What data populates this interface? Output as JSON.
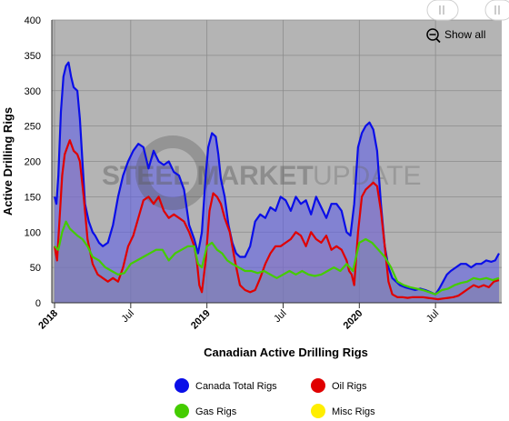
{
  "chart_data": {
    "type": "area",
    "title": "",
    "xlabel": "Canadian Active Drilling Rigs",
    "ylabel": "Active Drilling Rigs",
    "ylim": [
      0,
      400
    ],
    "yticks": [
      0,
      50,
      100,
      150,
      200,
      250,
      300,
      350,
      400
    ],
    "x_start": "2018-01",
    "x_end": "2020-12",
    "xticks": [
      {
        "label": "2018",
        "month": 0,
        "bold": true
      },
      {
        "label": "Jul",
        "month": 6,
        "bold": false
      },
      {
        "label": "2019",
        "month": 12,
        "bold": true
      },
      {
        "label": "Jul",
        "month": 18,
        "bold": false
      },
      {
        "label": "2020",
        "month": 24,
        "bold": true
      },
      {
        "label": "Jul",
        "month": 30,
        "bold": false
      }
    ],
    "grid": true,
    "legend_position": "bottom",
    "watermark": "STEEL MARKET UPDATE",
    "zoom_button_label": "Show all",
    "series": [
      {
        "name": "Canada Total Rigs",
        "color": "#0a0ee8",
        "x": [
          0,
          0.15,
          0.3,
          0.5,
          0.7,
          0.9,
          1.1,
          1.3,
          1.5,
          1.8,
          2.0,
          2.2,
          2.4,
          2.7,
          3.0,
          3.2,
          3.5,
          3.8,
          4.2,
          4.6,
          5.0,
          5.4,
          5.8,
          6.2,
          6.6,
          7.0,
          7.4,
          7.8,
          8.2,
          8.6,
          9.0,
          9.4,
          9.8,
          10.2,
          10.6,
          11.0,
          11.3,
          11.6,
          11.9,
          12.1,
          12.4,
          12.7,
          12.9,
          13.1,
          13.4,
          13.7,
          14.0,
          14.3,
          14.6,
          15.0,
          15.4,
          15.8,
          16.2,
          16.6,
          17.0,
          17.4,
          17.8,
          18.2,
          18.6,
          19.0,
          19.4,
          19.8,
          20.2,
          20.6,
          21.0,
          21.4,
          21.8,
          22.2,
          22.6,
          23.0,
          23.3,
          23.6,
          23.9,
          24.2,
          24.5,
          24.8,
          25.1,
          25.4,
          25.7,
          26.0,
          26.3,
          26.6,
          26.9,
          27.2,
          27.6,
          28.0,
          28.4,
          28.8,
          29.2,
          29.6,
          30.0,
          30.3,
          30.6,
          30.9,
          31.2,
          31.6,
          32.0,
          32.4,
          32.8,
          33.2,
          33.6,
          34.0,
          34.4,
          34.7,
          35.0
        ],
        "y": [
          150,
          140,
          180,
          270,
          320,
          335,
          340,
          320,
          305,
          300,
          260,
          200,
          140,
          115,
          100,
          95,
          85,
          80,
          85,
          110,
          150,
          180,
          200,
          215,
          225,
          220,
          190,
          215,
          200,
          195,
          200,
          185,
          180,
          160,
          110,
          90,
          70,
          100,
          180,
          220,
          240,
          235,
          210,
          175,
          150,
          110,
          85,
          70,
          65,
          65,
          80,
          115,
          125,
          120,
          135,
          130,
          150,
          145,
          130,
          150,
          140,
          145,
          125,
          150,
          135,
          120,
          140,
          140,
          130,
          100,
          95,
          140,
          220,
          240,
          250,
          255,
          245,
          215,
          140,
          80,
          50,
          35,
          30,
          25,
          22,
          20,
          18,
          20,
          18,
          15,
          12,
          20,
          30,
          40,
          45,
          50,
          55,
          55,
          50,
          55,
          55,
          60,
          58,
          60,
          70
        ]
      },
      {
        "name": "Oil Rigs",
        "color": "#e00000",
        "x": [
          0,
          0.2,
          0.4,
          0.6,
          0.8,
          1.0,
          1.2,
          1.5,
          1.8,
          2.0,
          2.3,
          2.6,
          3.0,
          3.4,
          3.8,
          4.2,
          4.6,
          5.0,
          5.4,
          5.8,
          6.2,
          6.6,
          7.0,
          7.4,
          7.8,
          8.2,
          8.6,
          9.0,
          9.4,
          9.8,
          10.2,
          10.6,
          11.0,
          11.2,
          11.4,
          11.6,
          11.9,
          12.2,
          12.5,
          12.8,
          13.1,
          13.4,
          13.8,
          14.2,
          14.6,
          15.0,
          15.4,
          15.8,
          16.2,
          16.6,
          17.0,
          17.4,
          17.8,
          18.2,
          18.6,
          19.0,
          19.4,
          19.8,
          20.2,
          20.6,
          21.0,
          21.4,
          21.8,
          22.2,
          22.6,
          23.0,
          23.2,
          23.4,
          23.6,
          23.9,
          24.2,
          24.5,
          24.8,
          25.1,
          25.4,
          25.7,
          26.0,
          26.3,
          26.6,
          27.0,
          27.4,
          27.8,
          28.2,
          28.6,
          29.0,
          29.4,
          29.8,
          30.2,
          30.6,
          31.0,
          31.4,
          31.8,
          32.2,
          32.6,
          33.0,
          33.4,
          33.8,
          34.2,
          34.6,
          35.0
        ],
        "y": [
          80,
          60,
          120,
          180,
          210,
          220,
          230,
          215,
          210,
          200,
          150,
          90,
          55,
          40,
          35,
          30,
          35,
          30,
          50,
          80,
          95,
          120,
          145,
          150,
          140,
          150,
          130,
          120,
          125,
          120,
          115,
          100,
          80,
          60,
          25,
          15,
          60,
          130,
          155,
          150,
          140,
          120,
          100,
          60,
          25,
          18,
          15,
          18,
          35,
          55,
          70,
          80,
          80,
          85,
          90,
          100,
          95,
          80,
          100,
          90,
          85,
          95,
          75,
          80,
          75,
          60,
          45,
          40,
          25,
          100,
          150,
          160,
          165,
          170,
          165,
          130,
          80,
          30,
          12,
          8,
          8,
          7,
          8,
          8,
          8,
          7,
          6,
          5,
          6,
          7,
          8,
          10,
          15,
          20,
          25,
          22,
          25,
          22,
          30,
          32
        ]
      },
      {
        "name": "Gas Rigs",
        "color": "#44cc00",
        "x": [
          0,
          0.3,
          0.6,
          0.9,
          1.2,
          1.5,
          1.8,
          2.2,
          2.6,
          3.0,
          3.5,
          4.0,
          4.5,
          5.0,
          5.5,
          6.0,
          6.5,
          7.0,
          7.5,
          8.0,
          8.5,
          9.0,
          9.5,
          10.0,
          10.5,
          11.0,
          11.3,
          11.6,
          12.0,
          12.4,
          12.8,
          13.2,
          13.6,
          14.0,
          14.5,
          15.0,
          15.5,
          16.0,
          16.5,
          17.0,
          17.5,
          18.0,
          18.5,
          19.0,
          19.5,
          20.0,
          20.5,
          21.0,
          21.5,
          22.0,
          22.5,
          23.0,
          23.5,
          24.0,
          24.5,
          25.0,
          25.5,
          26.0,
          26.5,
          27.0,
          27.5,
          28.0,
          28.5,
          29.0,
          29.5,
          30.0,
          30.5,
          31.0,
          31.5,
          32.0,
          32.5,
          33.0,
          33.5,
          34.0,
          34.5,
          35.0
        ],
        "y": [
          80,
          75,
          100,
          115,
          105,
          100,
          95,
          90,
          80,
          65,
          60,
          50,
          45,
          40,
          42,
          55,
          60,
          65,
          70,
          75,
          75,
          60,
          70,
          75,
          80,
          80,
          55,
          50,
          80,
          85,
          75,
          70,
          60,
          55,
          50,
          45,
          45,
          42,
          45,
          40,
          35,
          40,
          45,
          40,
          45,
          40,
          38,
          40,
          45,
          50,
          45,
          55,
          45,
          85,
          90,
          85,
          75,
          65,
          50,
          30,
          25,
          22,
          20,
          18,
          15,
          12,
          18,
          20,
          25,
          28,
          30,
          35,
          33,
          35,
          32,
          35
        ]
      },
      {
        "name": "Misc Rigs",
        "color": "#ffee00",
        "x": [],
        "y": []
      }
    ]
  }
}
